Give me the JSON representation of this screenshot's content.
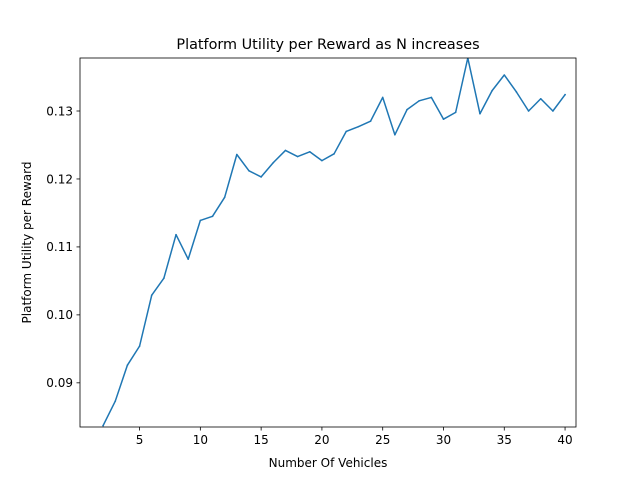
{
  "chart_data": {
    "type": "line",
    "title": "Platform Utility per Reward as N increases",
    "xlabel": "Number Of Vehicles",
    "ylabel": "Platform Utility per Reward",
    "xlim": [
      0.1,
      40.9
    ],
    "ylim": [
      0.0835,
      0.1378
    ],
    "xticks": [
      5,
      10,
      15,
      20,
      25,
      30,
      35,
      40
    ],
    "yticks": [
      0.09,
      0.1,
      0.11,
      0.12,
      0.13
    ],
    "ytick_labels": [
      "0.09",
      "0.10",
      "0.11",
      "0.12",
      "0.13"
    ],
    "grid": false,
    "series": [
      {
        "color": "#1f77b4",
        "x": [
          2,
          3,
          4,
          5,
          6,
          7,
          8,
          9,
          10,
          11,
          12,
          13,
          14,
          15,
          16,
          17,
          18,
          19,
          20,
          21,
          22,
          23,
          24,
          25,
          26,
          27,
          28,
          29,
          30,
          31,
          32,
          33,
          34,
          35,
          36,
          37,
          38,
          39,
          40
        ],
        "y": [
          0.0837,
          0.0873,
          0.0926,
          0.0954,
          0.1029,
          0.1054,
          0.1118,
          0.1082,
          0.1139,
          0.1145,
          0.1173,
          0.1236,
          0.1212,
          0.1203,
          0.1224,
          0.1242,
          0.1233,
          0.124,
          0.1227,
          0.1237,
          0.127,
          0.1277,
          0.1285,
          0.132,
          0.1265,
          0.1302,
          0.1315,
          0.132,
          0.1288,
          0.1298,
          0.1378,
          0.1296,
          0.133,
          0.1353,
          0.1328,
          0.13,
          0.1318,
          0.13,
          0.1324
        ]
      }
    ]
  }
}
